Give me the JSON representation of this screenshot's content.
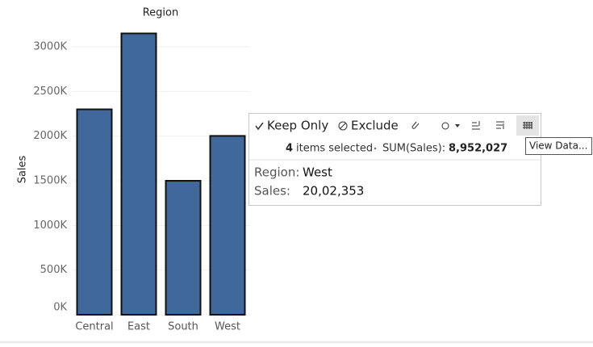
{
  "chart_data": {
    "type": "bar",
    "title": "Region",
    "y_label": "Sales",
    "categories": [
      "Central",
      "East",
      "South",
      "West"
    ],
    "values": [
      2300000,
      3150000,
      1500000,
      2002353
    ],
    "color": "#41689a",
    "ylim": [
      0,
      3200000
    ],
    "yticks": [
      {
        "value": 0,
        "label": "0K"
      },
      {
        "value": 500000,
        "label": "500K"
      },
      {
        "value": 1000000,
        "label": "1000K"
      },
      {
        "value": 1500000,
        "label": "1500K"
      },
      {
        "value": 2000000,
        "label": "2000K"
      },
      {
        "value": 2500000,
        "label": "2500K"
      },
      {
        "value": 3000000,
        "label": "3000K"
      }
    ],
    "grid": true
  },
  "tooltip": {
    "keep_only": "Keep Only",
    "exclude": "Exclude",
    "selected_count": "4",
    "selected_text": "items selected",
    "sum_label": "SUM(Sales):",
    "sum_value": "8,952,027",
    "region_label": "Region:",
    "region_value": "West",
    "sales_label": "Sales:",
    "sales_value": "20,02,353",
    "view_data": "View Data..."
  }
}
